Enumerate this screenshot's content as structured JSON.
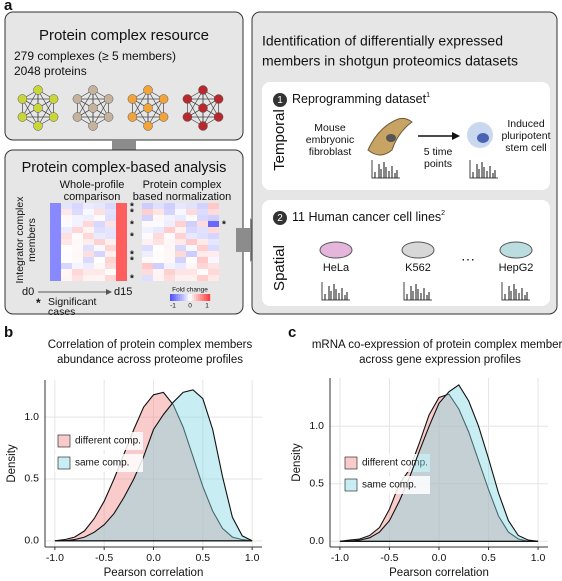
{
  "panel_labels": [
    "a",
    "b",
    "c"
  ],
  "resource": {
    "title": "Protein complex resource",
    "lines": [
      "279 complexes (≥ 5 members)",
      "2048 proteins"
    ]
  },
  "analysis": {
    "title": "Protein complex-based analysis",
    "whole_profile": [
      "Whole-profile",
      "comparison"
    ],
    "normalization": [
      "Protein complex",
      "based normalization"
    ],
    "y_label": [
      "Integrator complex",
      "members"
    ],
    "start": "d0",
    "end": "d15",
    "star": "*",
    "significant": [
      "Significant",
      "cases"
    ],
    "legend_title": "Fold change",
    "legend_ticks": [
      "-1",
      "0",
      "1"
    ]
  },
  "identification": {
    "title": [
      "Identification of differentially expressed",
      "members in shotgun proteomics datasets"
    ],
    "temporal": {
      "number": "1",
      "title": "Reprogramming dataset",
      "ref": "1",
      "side": "Temporal",
      "source": [
        "Mouse",
        "embryonic",
        "fibroblast"
      ],
      "step": [
        "5 time",
        "points"
      ],
      "target": [
        "Induced",
        "pluripotent",
        "stem cell"
      ]
    },
    "spatial": {
      "number": "2",
      "title": "11 Human cancer cell lines",
      "ref": "2",
      "side": "Spatial",
      "cells": [
        "HeLa",
        "K562",
        "HepG2"
      ],
      "ellipsis": "···"
    }
  },
  "chart_data": [
    {
      "type": "density",
      "title": [
        "Correlation of protein complex members",
        "abundance across proteome profiles"
      ],
      "x_label": "Pearson correlation",
      "y_label": "Density",
      "x": [
        -1,
        -0.9,
        -0.8,
        -0.7,
        -0.6,
        -0.5,
        -0.4,
        -0.3,
        -0.2,
        -0.1,
        0,
        0.1,
        0.2,
        0.3,
        0.4,
        0.5,
        0.6,
        0.7,
        0.8,
        0.9,
        1
      ],
      "series": [
        {
          "name": "different comp.",
          "color": "#f28b8b",
          "values": [
            0,
            0.01,
            0.03,
            0.08,
            0.18,
            0.32,
            0.5,
            0.7,
            0.9,
            1.08,
            1.18,
            1.2,
            1.1,
            0.92,
            0.68,
            0.44,
            0.24,
            0.1,
            0.03,
            0.01,
            0
          ]
        },
        {
          "name": "same comp.",
          "color": "#86d6e2",
          "values": [
            0,
            0,
            0.01,
            0.03,
            0.07,
            0.13,
            0.22,
            0.35,
            0.5,
            0.68,
            0.9,
            1.02,
            1.12,
            1.2,
            1.22,
            1.15,
            0.9,
            0.52,
            0.19,
            0.04,
            0
          ]
        }
      ],
      "xlim": [
        -1.1,
        1.1
      ],
      "ylim": [
        -0.05,
        1.3
      ],
      "xticks": [
        {
          "value": -1,
          "label": "-1.0"
        },
        -0.5,
        {
          "value": 0,
          "label": "0.0"
        },
        0.5,
        {
          "value": 1,
          "label": "1.0"
        }
      ],
      "yticks": [
        {
          "value": 0,
          "label": "0.0"
        },
        0.5,
        {
          "value": 1,
          "label": "1.0"
        }
      ],
      "grid": true
    },
    {
      "type": "density",
      "title": [
        "mRNA co-expression of protein complex members",
        "across gene expression profiles"
      ],
      "x_label": "Pearson correlation",
      "y_label": "Density",
      "x": [
        -1,
        -0.9,
        -0.8,
        -0.7,
        -0.6,
        -0.5,
        -0.4,
        -0.3,
        -0.2,
        -0.1,
        0,
        0.1,
        0.2,
        0.3,
        0.4,
        0.5,
        0.6,
        0.7,
        0.8,
        0.9,
        1
      ],
      "series": [
        {
          "name": "different comp.",
          "color": "#f28b8b",
          "values": [
            0,
            0.01,
            0.02,
            0.05,
            0.12,
            0.28,
            0.5,
            0.62,
            0.85,
            1.1,
            1.25,
            1.28,
            1.15,
            0.95,
            0.7,
            0.45,
            0.22,
            0.08,
            0.02,
            0,
            0
          ]
        },
        {
          "name": "same comp.",
          "color": "#86d6e2",
          "values": [
            0,
            0,
            0.01,
            0.03,
            0.08,
            0.18,
            0.35,
            0.55,
            0.78,
            1.0,
            1.2,
            1.3,
            1.36,
            1.22,
            1.0,
            0.72,
            0.42,
            0.18,
            0.05,
            0.01,
            0
          ]
        }
      ],
      "xlim": [
        -1.1,
        1.1
      ],
      "ylim": [
        -0.05,
        1.42
      ],
      "xticks": [
        {
          "value": -1,
          "label": "-1.0"
        },
        -0.5,
        {
          "value": 0,
          "label": "0.0"
        },
        0.5,
        {
          "value": 1,
          "label": "1.0"
        }
      ],
      "yticks": [
        {
          "value": 0,
          "label": "0.0"
        },
        0.5,
        {
          "value": 1,
          "label": "1.0"
        }
      ],
      "grid": true
    }
  ]
}
